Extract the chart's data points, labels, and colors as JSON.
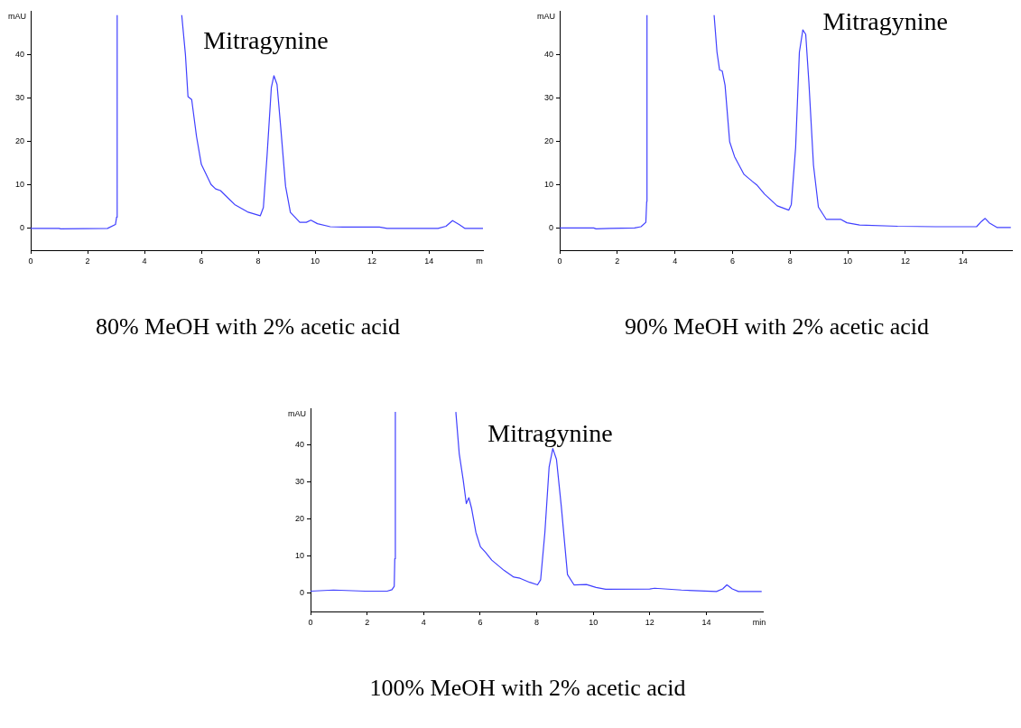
{
  "chart_data": [
    {
      "type": "line",
      "title": "80% MeOH with 2% acetic acid",
      "ylabel": "mAU",
      "xlabel": "m",
      "annotations": [
        "Mitragynine"
      ],
      "xlim": [
        0,
        15.9
      ],
      "xticks": [
        0,
        2,
        4,
        6,
        8,
        10,
        12,
        14
      ],
      "ylim": [
        -5,
        50
      ],
      "yticks": [
        0,
        10,
        20,
        30,
        40
      ],
      "legend": false,
      "marker": "none",
      "series": [
        {
          "color": "#4040ff",
          "x": [
            0,
            1,
            1.05,
            2.7,
            2.98,
            3.02,
            3.04,
            4,
            5.31,
            5.44,
            5.53,
            5.66,
            5.83,
            6.0,
            6.34,
            6.5,
            6.67,
            7.17,
            7.62,
            8.07,
            8.18,
            8.31,
            8.46,
            8.55,
            8.66,
            8.79,
            8.96,
            9.13,
            9.46,
            9.69,
            9.85,
            10.08,
            10.53,
            10.97,
            12.26,
            12.53,
            14.32,
            14.6,
            14.83,
            15.06,
            15.27,
            15.9
          ],
          "values": [
            0,
            0,
            -0.1,
            0,
            0.9,
            2.6,
            49,
            null,
            49,
            39.9,
            30.3,
            29.6,
            21.1,
            14.7,
            10.1,
            9.1,
            8.7,
            5.5,
            3.8,
            2.9,
            4.8,
            16.8,
            32.4,
            35.1,
            33.1,
            23.2,
            9.7,
            3.7,
            1.4,
            1.4,
            1.9,
            1.1,
            0.4,
            0.3,
            0.3,
            0,
            0,
            0.5,
            1.8,
            0.9,
            0,
            0
          ]
        }
      ]
    },
    {
      "type": "line",
      "title": "90% MeOH with 2% acetic acid",
      "ylabel": "mAU",
      "annotations": [
        "Mitragynine"
      ],
      "xlim": [
        0,
        15.7
      ],
      "xticks": [
        0,
        2,
        4,
        6,
        8,
        10,
        12,
        14
      ],
      "ylim": [
        -5,
        50
      ],
      "yticks": [
        0,
        10,
        20,
        30,
        40
      ],
      "legend": false,
      "marker": "none",
      "series": [
        {
          "color": "#4040ff",
          "x": [
            0,
            1.18,
            1.26,
            1.73,
            2.6,
            2.82,
            2.99,
            3.02,
            3.03,
            4,
            5.36,
            5.46,
            5.55,
            5.64,
            5.74,
            5.9,
            6.07,
            6.4,
            6.67,
            6.84,
            7.11,
            7.55,
            7.95,
            8.04,
            8.19,
            8.32,
            8.44,
            8.54,
            8.65,
            8.81,
            8.98,
            9.25,
            9.75,
            9.97,
            10.41,
            11.73,
            13.04,
            14.47,
            14.64,
            14.77,
            14.91,
            15.19,
            15.66
          ],
          "values": [
            0.1,
            0.1,
            -0.1,
            0,
            0.1,
            0.4,
            1.4,
            6.2,
            49,
            null,
            49,
            40.5,
            36.4,
            36.2,
            32.9,
            19.9,
            16.5,
            12.4,
            10.9,
            10,
            7.9,
            5.2,
            4.2,
            5.5,
            18.6,
            40.5,
            45.6,
            44.6,
            33.6,
            14.5,
            4.9,
            2.1,
            2.1,
            1.3,
            0.8,
            0.5,
            0.4,
            0.4,
            1.6,
            2.3,
            1.3,
            0.2,
            0.2
          ]
        }
      ]
    },
    {
      "type": "line",
      "title": "100% MeOH with 2% acetic acid",
      "ylabel": "mAU",
      "xlabel": "min",
      "annotations": [
        "Mitragynine"
      ],
      "xlim": [
        0,
        16
      ],
      "xticks": [
        0,
        2,
        4,
        6,
        8,
        10,
        12,
        14
      ],
      "ylim": [
        -5,
        50
      ],
      "yticks": [
        0,
        10,
        20,
        30,
        40
      ],
      "legend": false,
      "marker": "none",
      "series": [
        {
          "color": "#4040ff",
          "x": [
            0,
            0.81,
            1.93,
            2.71,
            2.88,
            2.96,
            2.98,
            3.0,
            4,
            5.14,
            5.26,
            5.4,
            5.51,
            5.6,
            5.7,
            5.85,
            6.01,
            6.18,
            6.41,
            6.85,
            7.19,
            7.41,
            7.75,
            8.03,
            8.14,
            8.29,
            8.44,
            8.57,
            8.7,
            8.87,
            9.09,
            9.32,
            9.76,
            10.1,
            10.44,
            12.0,
            12.17,
            13.12,
            14.36,
            14.58,
            14.73,
            14.92,
            15.14,
            15.96
          ],
          "values": [
            0.5,
            0.8,
            0.5,
            0.5,
            0.9,
            1.8,
            9.3,
            49,
            null,
            49,
            37.7,
            30.6,
            24.2,
            25.8,
            22.8,
            16.4,
            12.5,
            11.1,
            8.9,
            6.1,
            4.3,
            4,
            2.9,
            2.2,
            3.6,
            16.4,
            34.1,
            39.1,
            36.2,
            23.5,
            5,
            2.2,
            2.3,
            1.5,
            1,
            1.1,
            1.3,
            0.8,
            0.4,
            1.1,
            2.2,
            1.1,
            0.4,
            0.4
          ]
        }
      ]
    }
  ]
}
